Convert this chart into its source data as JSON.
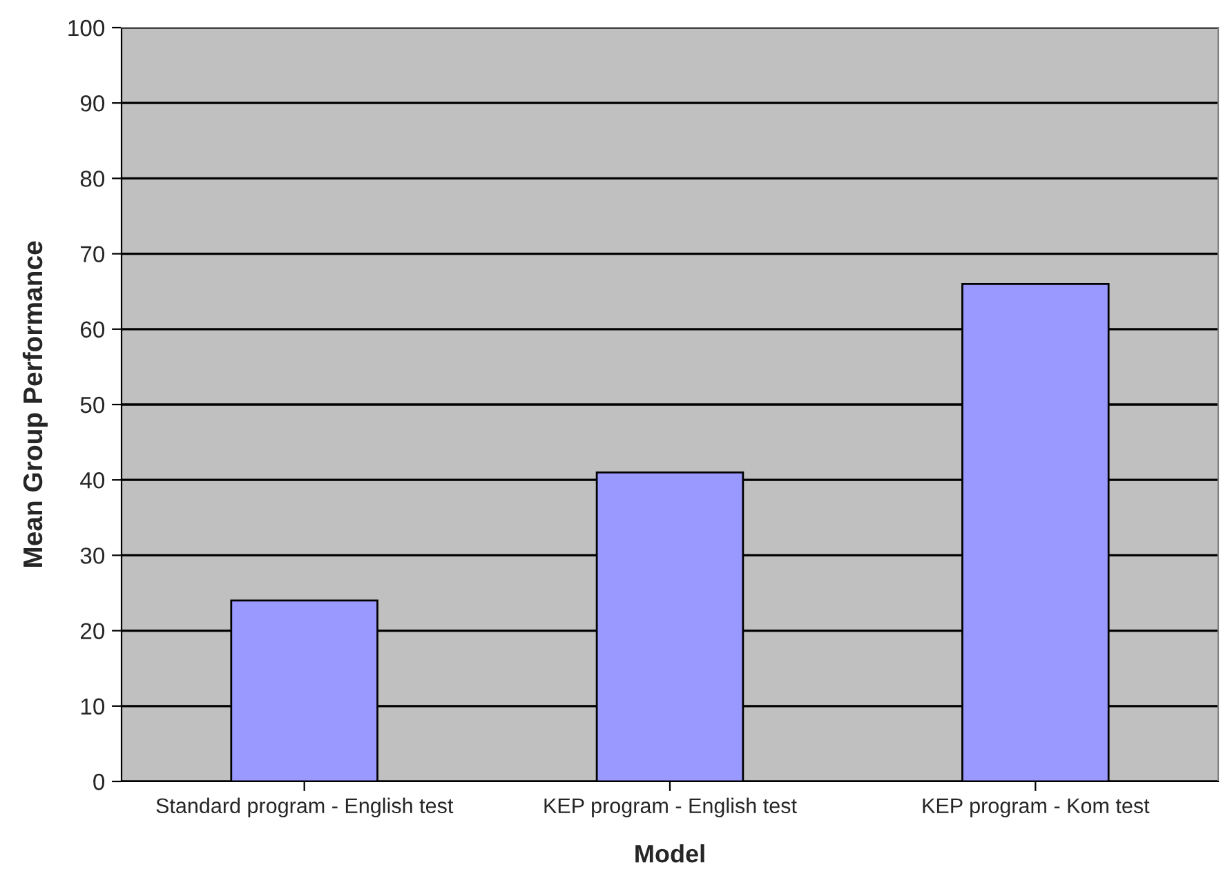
{
  "chart_data": {
    "type": "bar",
    "xlabel": "Model",
    "ylabel": "Mean Group Performance",
    "categories": [
      "Standard program - English test",
      "KEP program - English test",
      "KEP program - Kom test"
    ],
    "values": [
      24,
      41,
      66
    ],
    "color": "#9999ff",
    "ylim": [
      0,
      100
    ],
    "yticks": [
      0,
      10,
      20,
      30,
      40,
      50,
      60,
      70,
      80,
      90,
      100
    ],
    "grid": "y",
    "legend": false
  }
}
